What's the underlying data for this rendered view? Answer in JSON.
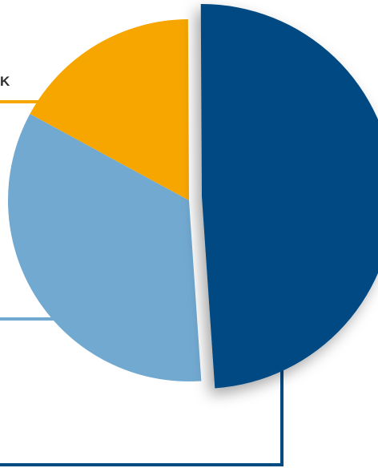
{
  "chart_data": {
    "type": "pie",
    "title": "",
    "slices": [
      {
        "label": "",
        "value": 49,
        "color": "#004A82",
        "exploded": true
      },
      {
        "label": "",
        "value": 34,
        "color": "#72A9D0",
        "exploded": false
      },
      {
        "label": "K",
        "value": 17,
        "color": "#F7A600",
        "exploded": false
      }
    ],
    "leader_lines": true,
    "shadow": true
  }
}
